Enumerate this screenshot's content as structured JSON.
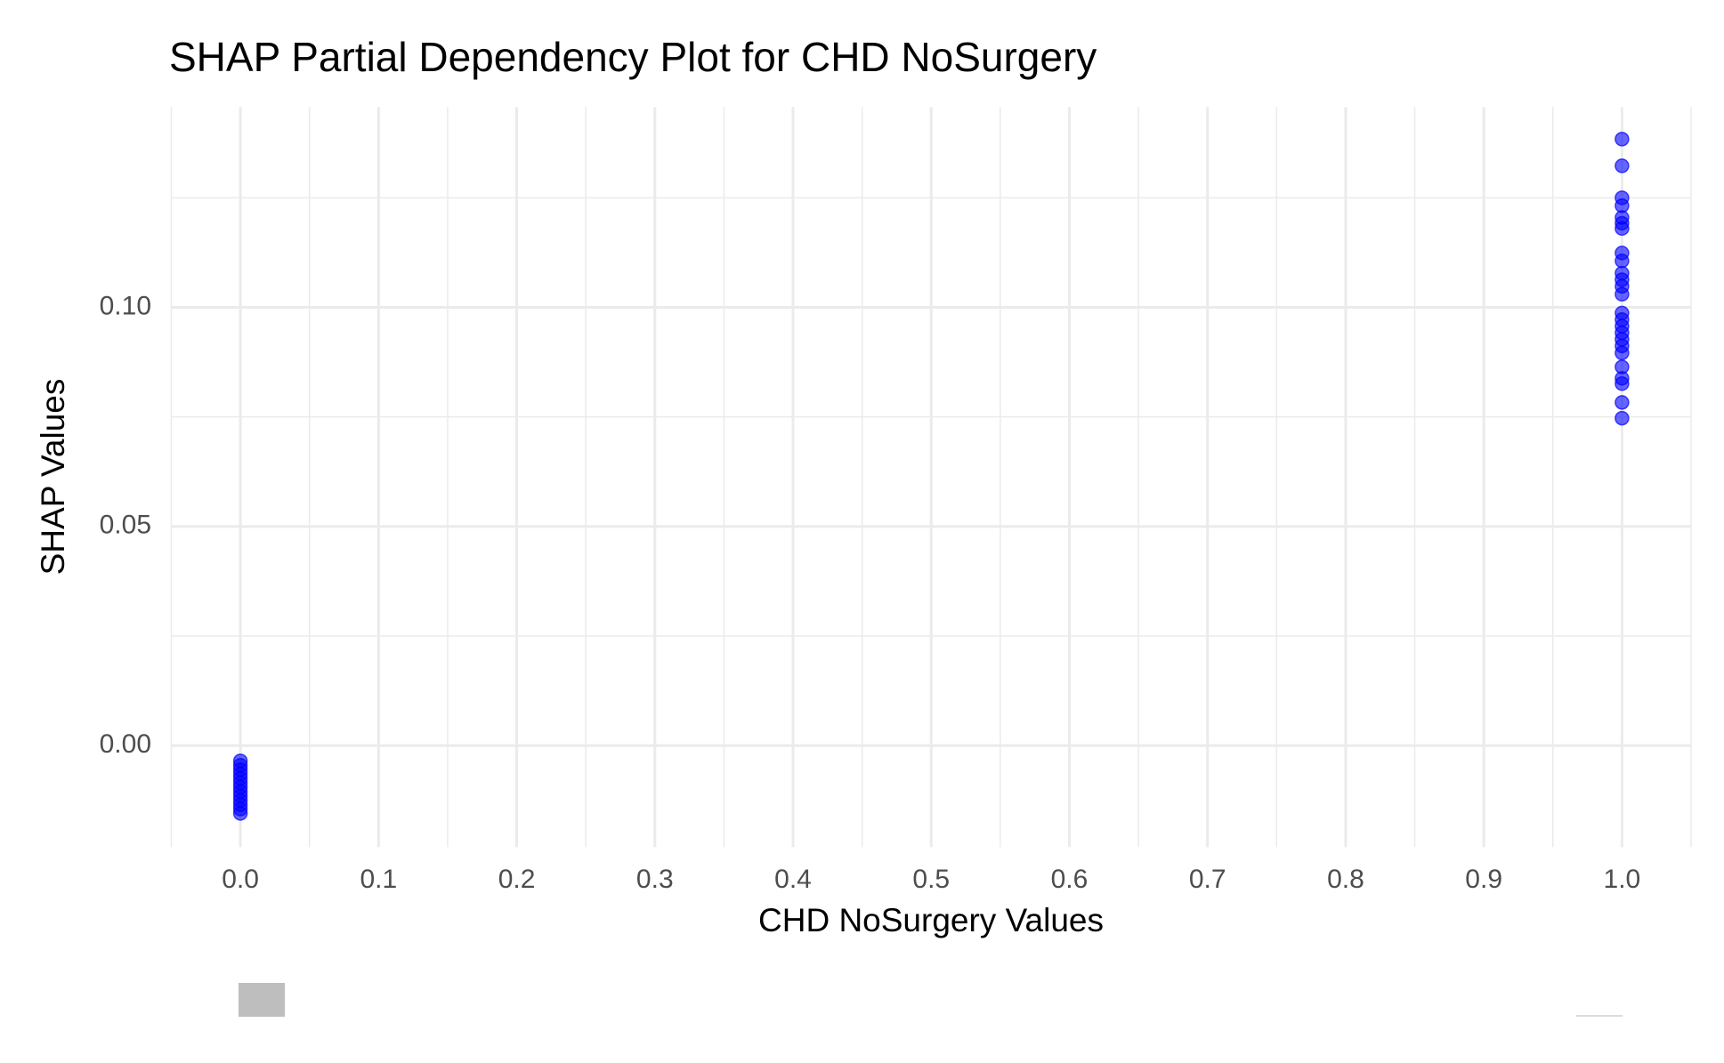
{
  "chart_data": {
    "type": "scatter",
    "title": "SHAP Partial Dependency Plot for CHD NoSurgery",
    "x_label": "CHD NoSurgery Values",
    "y_label": "SHAP Values",
    "x": [
      1,
      1,
      1,
      1,
      1,
      1,
      1,
      1,
      1,
      1,
      1,
      1,
      1,
      1,
      1,
      1,
      1,
      1,
      1,
      1,
      1,
      1,
      1,
      1,
      1,
      0,
      0,
      0,
      0,
      0,
      0,
      0,
      0,
      0,
      0,
      0,
      0,
      0
    ],
    "values": [
      0.1384,
      0.1323,
      0.125,
      0.1232,
      0.1205,
      0.1192,
      0.118,
      0.1124,
      0.1106,
      0.1078,
      0.1063,
      0.1048,
      0.103,
      0.0987,
      0.0972,
      0.0957,
      0.0942,
      0.0927,
      0.0912,
      0.0896,
      0.0864,
      0.0838,
      0.0826,
      0.0783,
      0.0747,
      -0.0035,
      -0.0045,
      -0.0055,
      -0.0065,
      -0.0075,
      -0.0085,
      -0.0095,
      -0.0105,
      -0.0115,
      -0.0125,
      -0.0135,
      -0.0145,
      -0.0155
    ],
    "color": "#0000ff",
    "xlim": [
      -0.05,
      1.05
    ],
    "ylim": [
      -0.0232,
      0.1457
    ],
    "xticks": [
      {
        "value": 0,
        "label": "0.0"
      },
      0.1,
      0.2,
      0.3,
      0.4,
      0.5,
      0.6,
      0.7,
      0.8,
      0.9,
      {
        "value": 1,
        "label": "1.0"
      }
    ],
    "yticks": [
      {
        "value": 0,
        "label": "0.00"
      },
      0.05,
      {
        "value": 0.1,
        "label": "0.10"
      }
    ],
    "x_minor_ticks": [
      -0.05,
      0.05,
      0.15,
      0.25,
      0.35,
      0.45,
      0.55,
      0.65,
      0.75,
      0.85,
      0.95,
      1.05
    ],
    "y_minor_ticks": [
      0.025,
      0.075,
      0.125
    ],
    "grid": true
  }
}
